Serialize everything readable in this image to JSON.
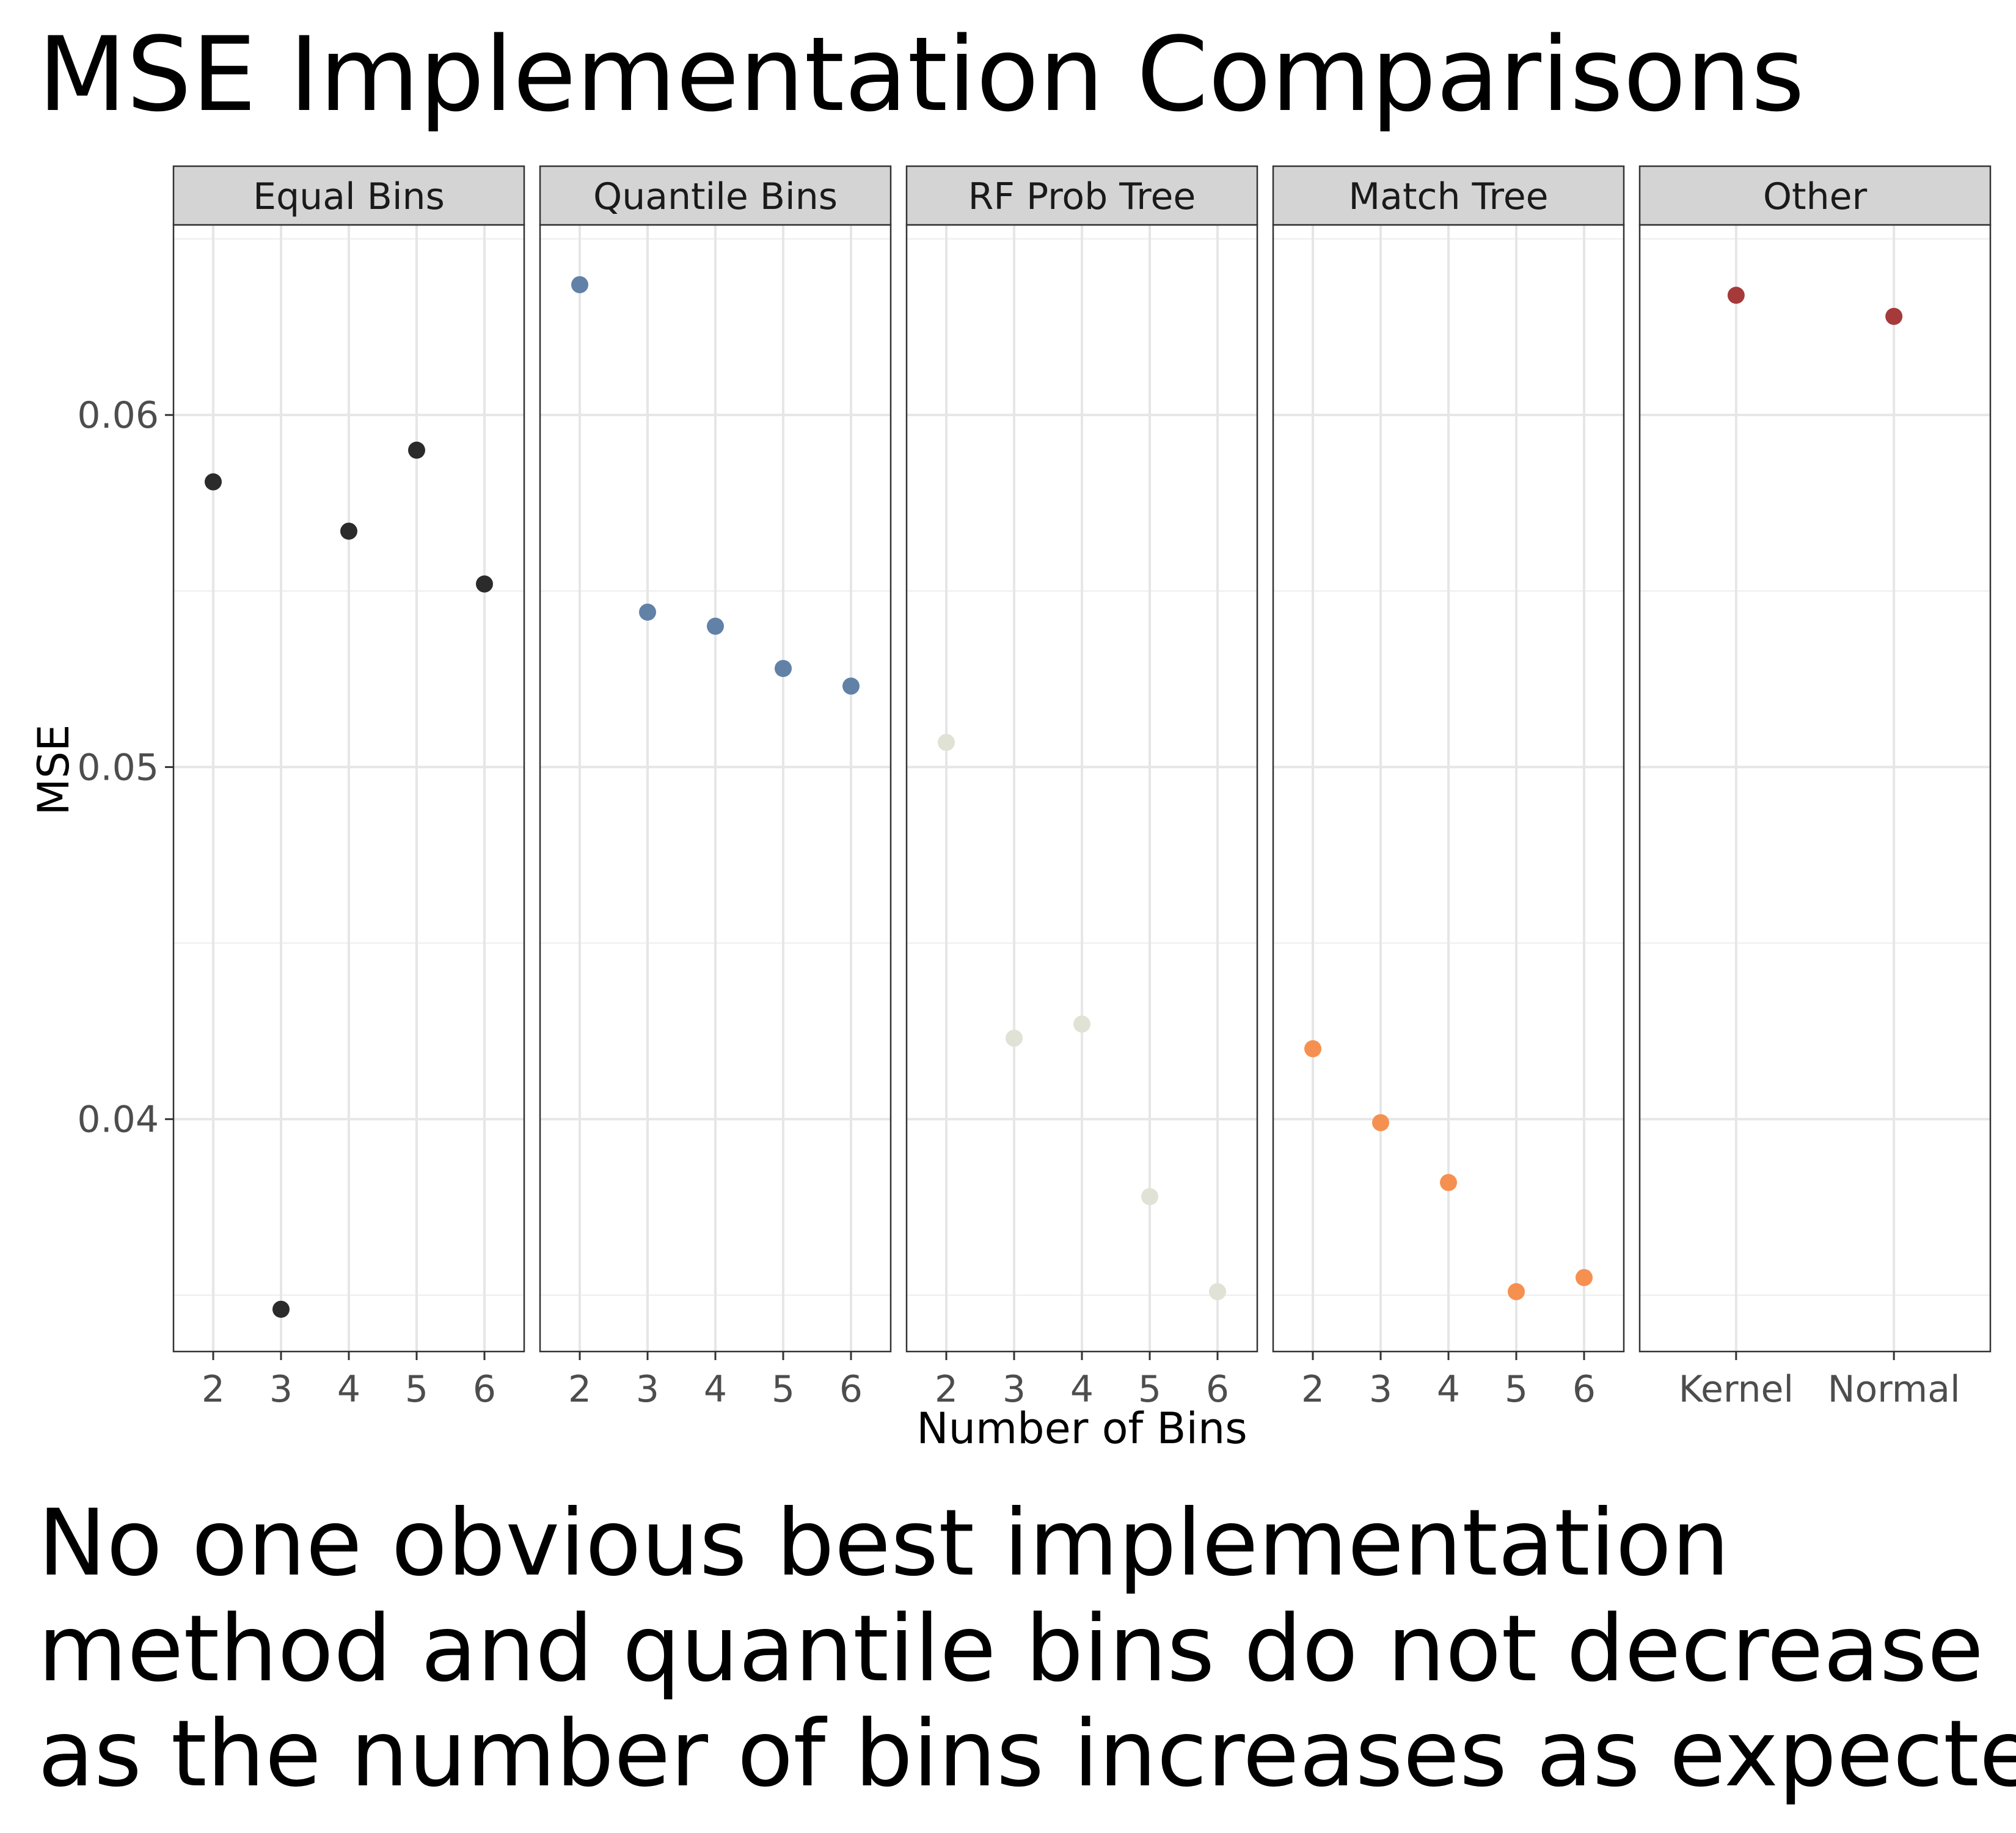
{
  "title": "MSE Implementation Comparisons",
  "caption": [
    "No one obvious best implementation",
    "method and quantile bins do not decrease",
    "as the number of bins increases as expected"
  ],
  "chart_data": {
    "type": "scatter",
    "facet": "column",
    "xlabel": "Number of Bins",
    "ylabel": "MSE",
    "ylim": [
      0.0334,
      0.0654
    ],
    "y_ticks": [
      0.04,
      0.05,
      0.06
    ],
    "y_tick_labels": [
      "0.04",
      "0.05",
      "0.06"
    ],
    "grid": true,
    "panels": [
      {
        "name": "Equal Bins",
        "color": "#2b2b2b",
        "x": [
          "2",
          "3",
          "4",
          "5",
          "6"
        ],
        "y": [
          0.0581,
          0.0346,
          0.0567,
          0.059,
          0.0552
        ]
      },
      {
        "name": "Quantile Bins",
        "color": "#6181a7",
        "x": [
          "2",
          "3",
          "4",
          "5",
          "6"
        ],
        "y": [
          0.0637,
          0.0544,
          0.054,
          0.0528,
          0.0523
        ]
      },
      {
        "name": "RF Prob Tree",
        "color": "#e1e2d6",
        "x": [
          "2",
          "3",
          "4",
          "5",
          "6"
        ],
        "y": [
          0.0507,
          0.0423,
          0.0427,
          0.0378,
          0.0351
        ]
      },
      {
        "name": "Match Tree",
        "color": "#f69050",
        "x": [
          "2",
          "3",
          "4",
          "5",
          "6"
        ],
        "y": [
          0.042,
          0.0399,
          0.0382,
          0.0351,
          0.0355
        ]
      },
      {
        "name": "Other",
        "color": "#a63a3a",
        "x": [
          "Kernel",
          "Normal"
        ],
        "y": [
          0.0634,
          0.0628
        ]
      }
    ]
  }
}
